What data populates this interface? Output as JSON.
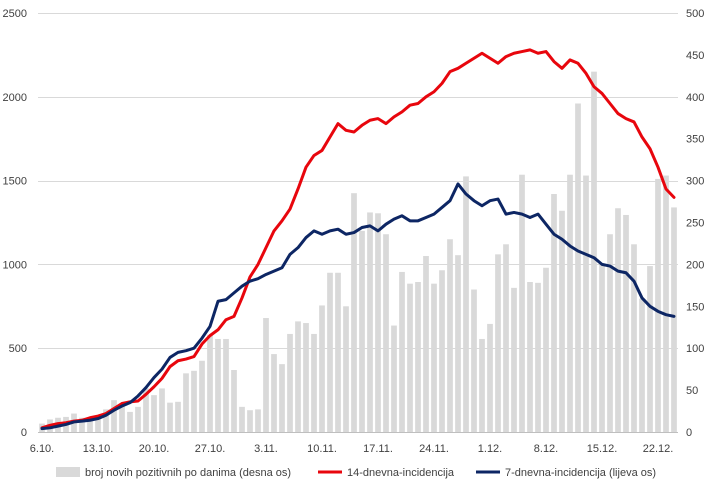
{
  "chart_data": {
    "type": "bar",
    "title": "",
    "x_tick_labels": [
      "6.10.",
      "13.10.",
      "20.10.",
      "27.10.",
      "3.11.",
      "10.11.",
      "17.11.",
      "24.11.",
      "1.12.",
      "8.12.",
      "15.12.",
      "22.12."
    ],
    "y_left": {
      "range": [
        0,
        2500
      ],
      "ticks": [
        0,
        500,
        1000,
        1500,
        2000,
        2500
      ],
      "label": ""
    },
    "y_right": {
      "range": [
        0,
        500
      ],
      "ticks": [
        0,
        50,
        100,
        150,
        200,
        250,
        300,
        350,
        400,
        450,
        500
      ],
      "label": ""
    },
    "grid": "horizontal",
    "legend_position": "bottom",
    "day_count": 80,
    "series": [
      {
        "name": "broj novih pozitivnih po danima (desna os)",
        "type": "bar",
        "axis": "right",
        "color": "#d9d9d9",
        "values": [
          10,
          15,
          17,
          18,
          22,
          17,
          16,
          19,
          27,
          38,
          31,
          24,
          30,
          52,
          44,
          52,
          35,
          36,
          70,
          73,
          85,
          116,
          111,
          111,
          74,
          30,
          26,
          27,
          136,
          93,
          81,
          117,
          132,
          130,
          117,
          151,
          190,
          190,
          150,
          285,
          240,
          262,
          261,
          236,
          127,
          191,
          177,
          179,
          210,
          177,
          193,
          230,
          211,
          305,
          170,
          111,
          129,
          212,
          224,
          172,
          307,
          179,
          178,
          196,
          284,
          264,
          307,
          392,
          306,
          430,
          201,
          236,
          267,
          259,
          224,
          159,
          198,
          302,
          306,
          268
        ]
      },
      {
        "name": "14-dnevna-incidencija",
        "type": "line",
        "axis": "left",
        "color": "#e8060d",
        "values": [
          25,
          40,
          50,
          55,
          65,
          70,
          85,
          95,
          110,
          140,
          170,
          180,
          185,
          225,
          270,
          320,
          390,
          425,
          435,
          450,
          525,
          575,
          610,
          670,
          690,
          800,
          925,
          1000,
          1100,
          1200,
          1260,
          1330,
          1450,
          1580,
          1650,
          1680,
          1760,
          1840,
          1800,
          1790,
          1830,
          1860,
          1870,
          1840,
          1880,
          1910,
          1950,
          1960,
          2000,
          2030,
          2080,
          2150,
          2170,
          2200,
          2230,
          2260,
          2230,
          2200,
          2240,
          2260,
          2270,
          2280,
          2260,
          2270,
          2210,
          2170,
          2220,
          2200,
          2140,
          2060,
          2020,
          1960,
          1900,
          1870,
          1850,
          1760,
          1690,
          1580,
          1450,
          1400
        ]
      },
      {
        "name": "7-dnevna-incidencija (lijeva os)",
        "type": "line",
        "axis": "left",
        "color": "#0d2664",
        "values": [
          20,
          25,
          35,
          45,
          60,
          65,
          70,
          80,
          100,
          130,
          155,
          175,
          215,
          265,
          325,
          375,
          445,
          475,
          485,
          500,
          560,
          630,
          780,
          790,
          830,
          870,
          900,
          915,
          940,
          960,
          980,
          1060,
          1100,
          1160,
          1200,
          1180,
          1200,
          1210,
          1180,
          1190,
          1220,
          1230,
          1200,
          1240,
          1270,
          1290,
          1260,
          1260,
          1280,
          1300,
          1340,
          1380,
          1480,
          1420,
          1380,
          1350,
          1380,
          1390,
          1300,
          1310,
          1300,
          1280,
          1300,
          1240,
          1180,
          1150,
          1110,
          1080,
          1060,
          1040,
          1000,
          990,
          960,
          950,
          900,
          800,
          750,
          720,
          700,
          690
        ]
      }
    ]
  }
}
